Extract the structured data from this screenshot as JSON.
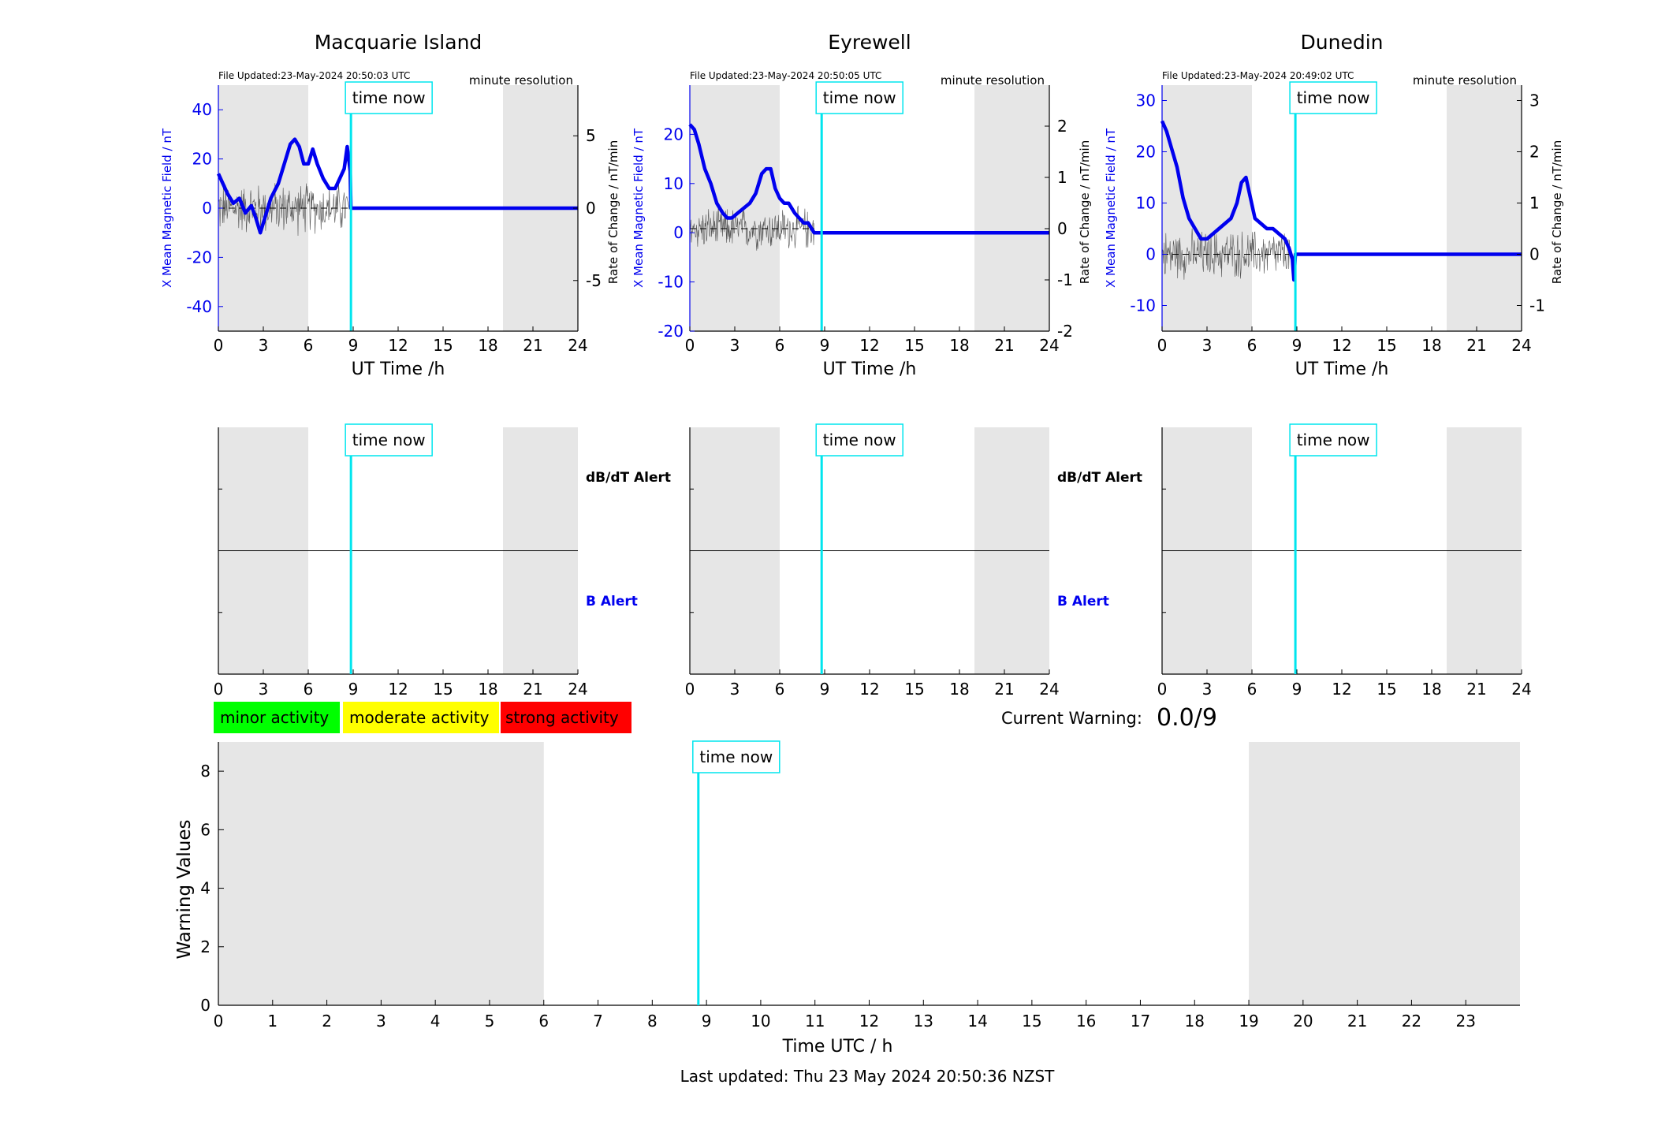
{
  "footer": {
    "last_updated": "Last updated: Thu 23 May 2024 20:50:36 NZST"
  },
  "colors": {
    "field": "#0000ee",
    "rate": "#000000",
    "time_now": "#00e5ee",
    "night_shade": "#e6e6e6",
    "minor": "#00ff00",
    "moderate": "#ffff00",
    "strong": "#ff0000"
  },
  "labels": {
    "time_now": "time now",
    "ut_time": "UT Time /h",
    "y_left": "X Mean Magnetic Field / nT",
    "y_right": "Rate of Change / nT/min",
    "resolution": "minute resolution",
    "dbdt_alert": "dB/dT Alert",
    "b_alert": "B Alert"
  },
  "legend": {
    "minor": "minor activity",
    "moderate": "moderate activity",
    "strong": "strong activity"
  },
  "warning": {
    "label": "Current Warning:",
    "value": "0.0/9"
  },
  "chart_data": [
    {
      "type": "line",
      "station": "Macquarie Island",
      "file_updated": "File Updated:23-May-2024 20:50:03 UTC",
      "xlim": [
        0,
        24
      ],
      "ylim_left": [
        -50,
        50
      ],
      "ylim_right": [
        -8.5,
        8.5
      ],
      "yticks_left": [
        -40,
        -20,
        0,
        20,
        40
      ],
      "yticks_right": [
        -5,
        0,
        5
      ],
      "shade": [
        [
          0,
          6
        ],
        [
          19,
          24
        ]
      ],
      "time_now": 8.85,
      "field": {
        "x": [
          0,
          0.3,
          0.6,
          1,
          1.4,
          1.8,
          2.2,
          2.5,
          2.8,
          3.1,
          3.5,
          4,
          4.5,
          4.8,
          5.1,
          5.4,
          5.7,
          6,
          6.3,
          6.6,
          7,
          7.4,
          7.8,
          8.1,
          8.4,
          8.6,
          8.8,
          8.85,
          9,
          24
        ],
        "y": [
          14,
          10,
          6,
          2,
          4,
          -2,
          1,
          -4,
          -10,
          -4,
          4,
          10,
          20,
          26,
          28,
          25,
          18,
          18,
          24,
          18,
          12,
          8,
          8,
          12,
          16,
          25,
          15,
          0,
          0,
          0
        ]
      },
      "rate_noise": {
        "t0": 0,
        "t1": 8.8,
        "amp": 1.5
      }
    },
    {
      "type": "line",
      "station": "Eyrewell",
      "file_updated": "File Updated:23-May-2024 20:50:05 UTC",
      "xlim": [
        0,
        24
      ],
      "ylim_left": [
        -20,
        30
      ],
      "ylim_right": [
        -2,
        2.8
      ],
      "yticks_left": [
        -20,
        -10,
        0,
        10,
        20
      ],
      "yticks_right": [
        -2,
        -1,
        0,
        1,
        2
      ],
      "shade": [
        [
          0,
          6
        ],
        [
          19,
          24
        ]
      ],
      "time_now": 8.8,
      "field": {
        "x": [
          0,
          0.3,
          0.6,
          1,
          1.4,
          1.8,
          2.2,
          2.5,
          2.8,
          3.2,
          3.6,
          4,
          4.4,
          4.8,
          5.1,
          5.4,
          5.7,
          6,
          6.3,
          6.6,
          7,
          7.3,
          7.6,
          7.9,
          8.1,
          8.3,
          9,
          24
        ],
        "y": [
          22,
          21,
          18,
          13,
          10,
          6,
          4,
          3,
          3,
          4,
          5,
          6,
          8,
          12,
          13,
          13,
          9,
          7,
          6,
          6,
          4,
          3,
          2,
          2,
          1,
          0,
          0,
          0
        ]
      },
      "rate_noise": {
        "t0": 0,
        "t1": 8.3,
        "amp": 0.35
      }
    },
    {
      "type": "line",
      "station": "Dunedin",
      "file_updated": "File Updated:23-May-2024 20:49:02 UTC",
      "xlim": [
        0,
        24
      ],
      "ylim_left": [
        -15,
        33
      ],
      "ylim_right": [
        -1.5,
        3.3
      ],
      "yticks_left": [
        -10,
        0,
        10,
        20,
        30
      ],
      "yticks_right": [
        -1,
        0,
        1,
        2,
        3
      ],
      "shade": [
        [
          0,
          6
        ],
        [
          19,
          24
        ]
      ],
      "time_now": 8.9,
      "field": {
        "x": [
          0,
          0.3,
          0.6,
          1,
          1.4,
          1.8,
          2.2,
          2.6,
          3,
          3.4,
          3.8,
          4.2,
          4.6,
          5,
          5.3,
          5.6,
          5.9,
          6.2,
          6.6,
          7,
          7.4,
          7.8,
          8.2,
          8.5,
          8.7,
          8.8,
          8.9,
          24
        ],
        "y": [
          26,
          24,
          21,
          17,
          11,
          7,
          5,
          3,
          3,
          4,
          5,
          6,
          7,
          10,
          14,
          15,
          11,
          7,
          6,
          5,
          5,
          4,
          3,
          1,
          -1,
          -5,
          0,
          0
        ]
      },
      "rate_noise": {
        "t0": 0,
        "t1": 8.6,
        "amp": 0.4
      }
    },
    {
      "type": "bar",
      "panel": "alerts",
      "station": "Macquarie Island",
      "xlim": [
        0,
        24
      ],
      "shade": [
        [
          0,
          6
        ],
        [
          19,
          24
        ]
      ],
      "time_now": 8.85,
      "xticks": [
        0,
        3,
        6,
        9,
        12,
        15,
        18,
        21,
        24
      ]
    },
    {
      "type": "bar",
      "panel": "alerts",
      "station": "Eyrewell",
      "xlim": [
        0,
        24
      ],
      "shade": [
        [
          0,
          6
        ],
        [
          19,
          24
        ]
      ],
      "time_now": 8.8,
      "xticks": [
        0,
        3,
        6,
        9,
        12,
        15,
        18,
        21,
        24
      ]
    },
    {
      "type": "bar",
      "panel": "alerts",
      "station": "Dunedin",
      "xlim": [
        0,
        24
      ],
      "shade": [
        [
          0,
          6
        ],
        [
          19,
          24
        ]
      ],
      "time_now": 8.9,
      "xticks": [
        0,
        3,
        6,
        9,
        12,
        15,
        18,
        21,
        24
      ]
    },
    {
      "type": "bar",
      "panel": "warning",
      "xlabel": "Time UTC / h",
      "ylabel": "Warning Values",
      "xlim": [
        0,
        24
      ],
      "ylim": [
        0,
        9
      ],
      "xticks": [
        0,
        1,
        2,
        3,
        4,
        5,
        6,
        7,
        8,
        9,
        10,
        11,
        12,
        13,
        14,
        15,
        16,
        17,
        18,
        19,
        20,
        21,
        22,
        23
      ],
      "yticks": [
        0,
        2,
        4,
        6,
        8
      ],
      "shade": [
        [
          0,
          6
        ],
        [
          19,
          24
        ]
      ],
      "time_now": 8.85,
      "values": []
    }
  ]
}
